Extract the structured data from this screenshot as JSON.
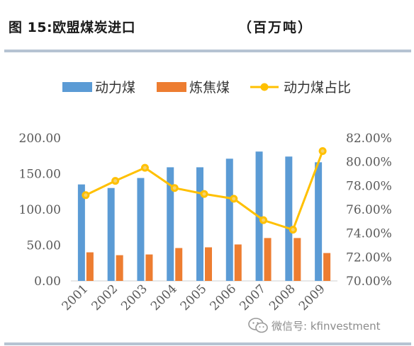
{
  "header": {
    "title": "图 15:欧盟煤炭进口",
    "unit": "（百万吨）"
  },
  "watermark": {
    "text": "微信号: kfinvestment",
    "icon": "wechat-icon"
  },
  "colors": {
    "thermal_coal": "#5b9bd5",
    "coking_coal": "#ed7d31",
    "share_line": "#ffc000",
    "axis_text": "#595959",
    "rule": "#b6c3d2"
  },
  "chart_data": {
    "type": "bar",
    "categories": [
      "2001",
      "2002",
      "2003",
      "2004",
      "2005",
      "2006",
      "2007",
      "2008",
      "2009"
    ],
    "series": [
      {
        "name": "动力煤",
        "kind": "bar",
        "axis": "left",
        "values": [
          135,
          130,
          144,
          159,
          159,
          171,
          181,
          174,
          166
        ]
      },
      {
        "name": "炼焦煤",
        "kind": "bar",
        "axis": "left",
        "values": [
          40,
          36,
          37,
          46,
          47,
          51,
          60,
          60,
          39
        ]
      },
      {
        "name": "动力煤占比",
        "kind": "line",
        "axis": "right",
        "values": [
          0.772,
          0.784,
          0.795,
          0.778,
          0.773,
          0.769,
          0.751,
          0.743,
          0.809
        ]
      }
    ],
    "left_axis": {
      "ylim": [
        0,
        200
      ],
      "ticks": [
        "0.00",
        "50.00",
        "100.00",
        "150.00",
        "200.00"
      ]
    },
    "right_axis": {
      "ylim": [
        0.7,
        0.82
      ],
      "ticks": [
        "70.00%",
        "72.00%",
        "74.00%",
        "76.00%",
        "78.00%",
        "80.00%",
        "82.00%"
      ]
    },
    "legend_position": "top",
    "grid": false
  }
}
